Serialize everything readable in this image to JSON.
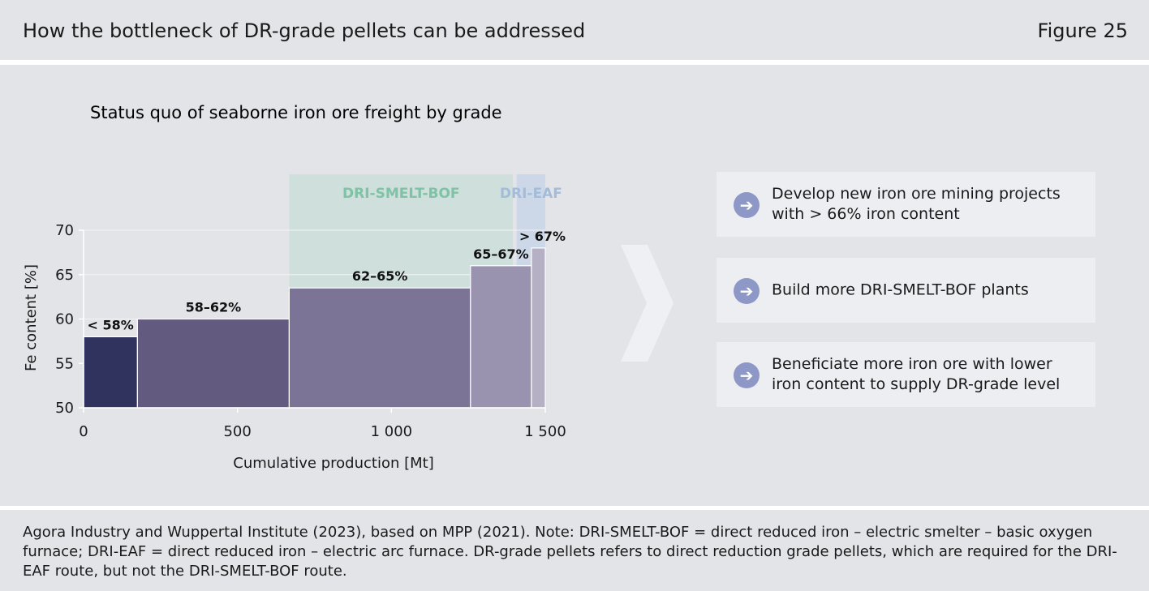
{
  "header": {
    "title": "How the bottleneck of DR-grade pellets can be addressed",
    "figure": "Figure 25"
  },
  "chart_data": {
    "type": "bar",
    "title": "Status quo of seaborne iron ore freight by grade",
    "xlabel": "Cumulative production [Mt]",
    "ylabel": "Fe content [%]",
    "xlim": [
      0,
      1500
    ],
    "ylim": [
      50,
      70
    ],
    "xticks": [
      "0",
      "500",
      "1 000",
      "1 500"
    ],
    "yticks": [
      "50",
      "55",
      "60",
      "65",
      "70"
    ],
    "bars": [
      {
        "label": "< 58%",
        "x_start": 0,
        "x_end": 175,
        "value": 58,
        "color": "#30335e"
      },
      {
        "label": "58–62%",
        "x_start": 175,
        "x_end": 668,
        "value": 60,
        "color": "#625b7f"
      },
      {
        "label": "62–65%",
        "x_start": 668,
        "x_end": 1257,
        "value": 63.5,
        "color": "#7b7496"
      },
      {
        "label": "65–67%",
        "x_start": 1257,
        "x_end": 1455,
        "value": 66,
        "color": "#9a93b0"
      },
      {
        "label": "> 67%",
        "x_start": 1455,
        "x_end": 1500,
        "value": 68,
        "color": "#b6b0c5"
      }
    ],
    "regions": [
      {
        "label": "DRI-SMELT-BOF",
        "x_start": 668,
        "x_end": 1395,
        "color": "#7fc2a6",
        "fill": "#cfe0dc"
      },
      {
        "label": "DRI-EAF",
        "x_start": 1407,
        "x_end": 1500,
        "color": "#a3bcd9",
        "fill": "#ccd7e8"
      }
    ]
  },
  "actions": [
    {
      "text": "Develop new iron ore mining projects with > 66% iron content",
      "icon": "arrow-right-icon"
    },
    {
      "text": "Build more DRI-SMELT-BOF plants",
      "icon": "arrow-right-icon"
    },
    {
      "text": "Beneficiate more iron ore with lower iron content to supply DR-grade level",
      "icon": "arrow-right-icon"
    }
  ],
  "footer": {
    "note": "Agora Industry and Wuppertal Institute (2023), based on MPP (2021). Note: DRI-SMELT-BOF = direct reduced iron – electric smelter – basic oxygen furnace; DRI-EAF = direct reduced iron – electric arc furnace. DR-grade pellets refers to direct reduction grade pellets, which are required for the DRI-EAF route, but not the DRI-SMELT-BOF route."
  }
}
